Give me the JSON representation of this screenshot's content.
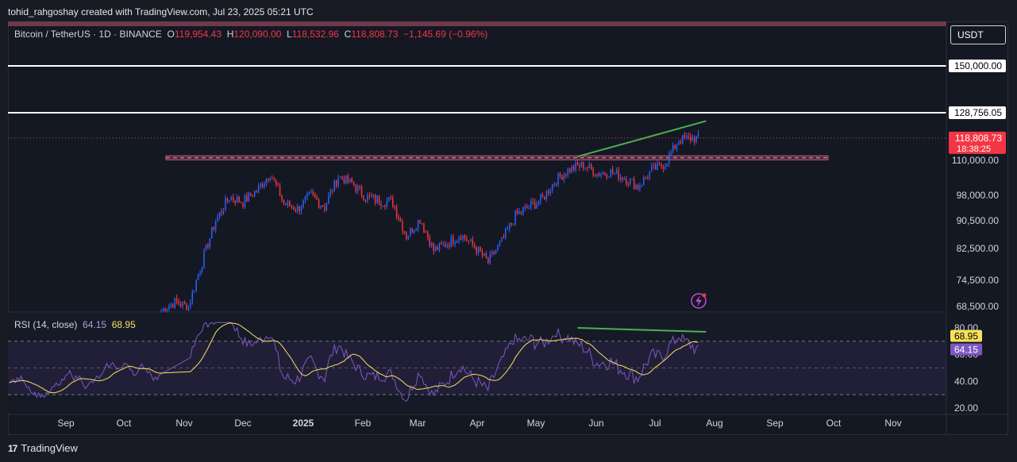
{
  "credit": "tohid_rahgoshay created with TradingView.com, Jul 23, 2025 05:21 UTC",
  "legend": {
    "symbol": "Bitcoin / TetherUS · 1D · BINANCE",
    "o_label": "O",
    "o_value": "119,954.43",
    "h_label": "H",
    "h_value": "120,090.00",
    "l_label": "L",
    "l_value": "118,532.96",
    "c_label": "C",
    "c_value": "118,808.73",
    "change": "−1,145.69 (−0.96%)"
  },
  "currency": "USDT",
  "rsi_legend": {
    "title": "RSI (14, close)",
    "rsi_value": "64.15",
    "ma_value": "68.95"
  },
  "footer": {
    "logo_mark": "17",
    "brand": "TradingView"
  },
  "colors": {
    "up": "#2962ff",
    "down": "#f23645",
    "rsi_line": "#7e57c2",
    "rsi_ma": "#f7e25b",
    "trend": "#4caf50",
    "price_tag": "#f23645"
  },
  "chart_data": {
    "type": "candlestick",
    "title": "Bitcoin / TetherUS · 1D · BINANCE",
    "y_axis_ticks": [
      "150,000.00",
      "128,756.05",
      "110,000.00",
      "98,000.00",
      "90,500.00",
      "82,500.00",
      "74,500.00",
      "68,500.00"
    ],
    "y_axis_values": [
      150000,
      128756.05,
      110000,
      98000,
      90500,
      82500,
      74500,
      68500
    ],
    "last_price": "118,808.73",
    "countdown": "18:38:25",
    "horizontal_levels": [
      150000,
      128756.05
    ],
    "zone": [
      110200,
      111800
    ],
    "price_trendline": [
      {
        "date": "2025-05-22",
        "price": 111500
      },
      {
        "date": "2025-07-27",
        "price": 125500
      }
    ],
    "x_labels": [
      "Sep",
      "Oct",
      "Nov",
      "Dec",
      "2025",
      "Feb",
      "Mar",
      "Apr",
      "May",
      "Jun",
      "Jul",
      "Aug",
      "Sep",
      "Oct",
      "Nov"
    ],
    "closes_weekly": [
      {
        "date": "2024-10-20",
        "close": 67500
      },
      {
        "date": "2024-10-27",
        "close": 69500
      },
      {
        "date": "2024-11-03",
        "close": 68500
      },
      {
        "date": "2024-11-10",
        "close": 79000
      },
      {
        "date": "2024-11-17",
        "close": 90500
      },
      {
        "date": "2024-11-24",
        "close": 97500
      },
      {
        "date": "2024-12-01",
        "close": 96000
      },
      {
        "date": "2024-12-08",
        "close": 99500
      },
      {
        "date": "2024-12-15",
        "close": 105500
      },
      {
        "date": "2024-12-22",
        "close": 95500
      },
      {
        "date": "2024-12-29",
        "close": 94000
      },
      {
        "date": "2025-01-05",
        "close": 98000
      },
      {
        "date": "2025-01-12",
        "close": 94500
      },
      {
        "date": "2025-01-19",
        "close": 104500
      },
      {
        "date": "2025-01-26",
        "close": 102000
      },
      {
        "date": "2025-02-02",
        "close": 97500
      },
      {
        "date": "2025-02-09",
        "close": 96500
      },
      {
        "date": "2025-02-16",
        "close": 96000
      },
      {
        "date": "2025-02-23",
        "close": 86000
      },
      {
        "date": "2025-03-02",
        "close": 91000
      },
      {
        "date": "2025-03-09",
        "close": 82000
      },
      {
        "date": "2025-03-16",
        "close": 84000
      },
      {
        "date": "2025-03-23",
        "close": 86500
      },
      {
        "date": "2025-03-30",
        "close": 83000
      },
      {
        "date": "2025-04-06",
        "close": 79000
      },
      {
        "date": "2025-04-13",
        "close": 84500
      },
      {
        "date": "2025-04-20",
        "close": 92000
      },
      {
        "date": "2025-04-27",
        "close": 94500
      },
      {
        "date": "2025-05-04",
        "close": 97000
      },
      {
        "date": "2025-05-11",
        "close": 103500
      },
      {
        "date": "2025-05-18",
        "close": 107000
      },
      {
        "date": "2025-05-25",
        "close": 108500
      },
      {
        "date": "2025-06-01",
        "close": 105500
      },
      {
        "date": "2025-06-08",
        "close": 106000
      },
      {
        "date": "2025-06-15",
        "close": 104000
      },
      {
        "date": "2025-06-22",
        "close": 101000
      },
      {
        "date": "2025-06-29",
        "close": 106500
      },
      {
        "date": "2025-07-06",
        "close": 109000
      },
      {
        "date": "2025-07-13",
        "close": 118000
      },
      {
        "date": "2025-07-20",
        "close": 118808.73
      }
    ],
    "rsi": {
      "period": 14,
      "ticks": [
        "80.00",
        "60.00",
        "40.00",
        "20.00"
      ],
      "tick_values": [
        80,
        60,
        40,
        20
      ],
      "bands": [
        70,
        30
      ],
      "middle": 50,
      "value": "64.15",
      "ma_value": "68.95",
      "trendline": [
        {
          "date": "2025-05-22",
          "rsi": 80
        },
        {
          "date": "2025-07-27",
          "rsi": 77
        }
      ]
    }
  }
}
